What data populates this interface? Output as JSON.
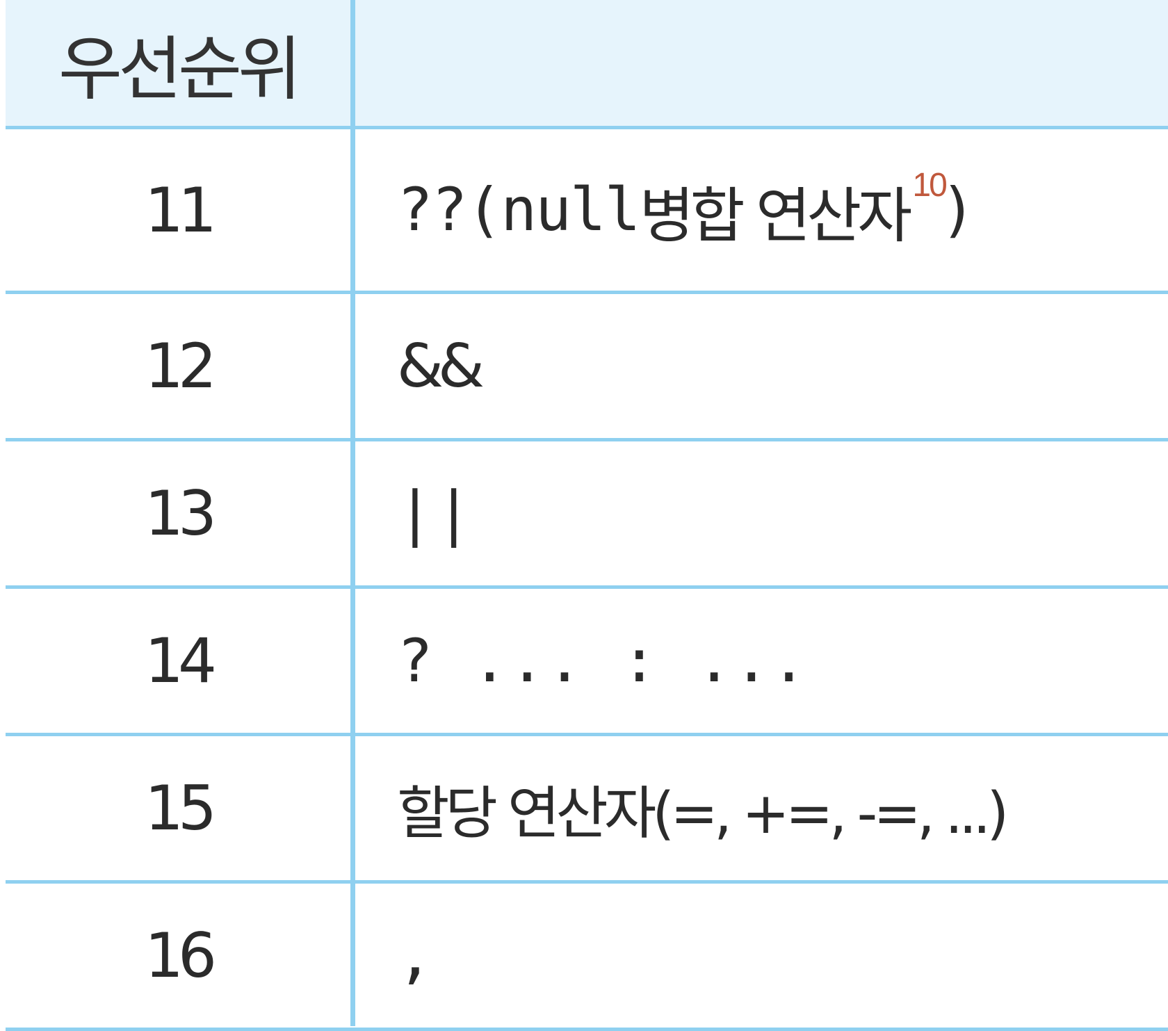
{
  "table": {
    "header": {
      "priority_label": "우선순위",
      "operator_label": ""
    },
    "rows": [
      {
        "priority": "11",
        "op_code": "??(null",
        "op_text": " 병합 연산자",
        "footnote": "10",
        "op_close": ")"
      },
      {
        "priority": "12",
        "op_code": "&&",
        "op_text": "",
        "footnote": "",
        "op_close": ""
      },
      {
        "priority": "13",
        "op_code": "||",
        "op_text": "",
        "footnote": "",
        "op_close": ""
      },
      {
        "priority": "14",
        "op_code": "? ... : ...",
        "op_text": "",
        "footnote": "",
        "op_close": ""
      },
      {
        "priority": "15",
        "op_code": "",
        "op_text": "할당 연산자(=, +=, -=, ...)",
        "footnote": "",
        "op_close": ""
      },
      {
        "priority": "16",
        "op_code": ",",
        "op_text": "",
        "footnote": "",
        "op_close": ""
      }
    ]
  },
  "colors": {
    "header_bg": "#e6f4fc",
    "rule": "#8fd0f0",
    "footnote": "#c0583c"
  }
}
